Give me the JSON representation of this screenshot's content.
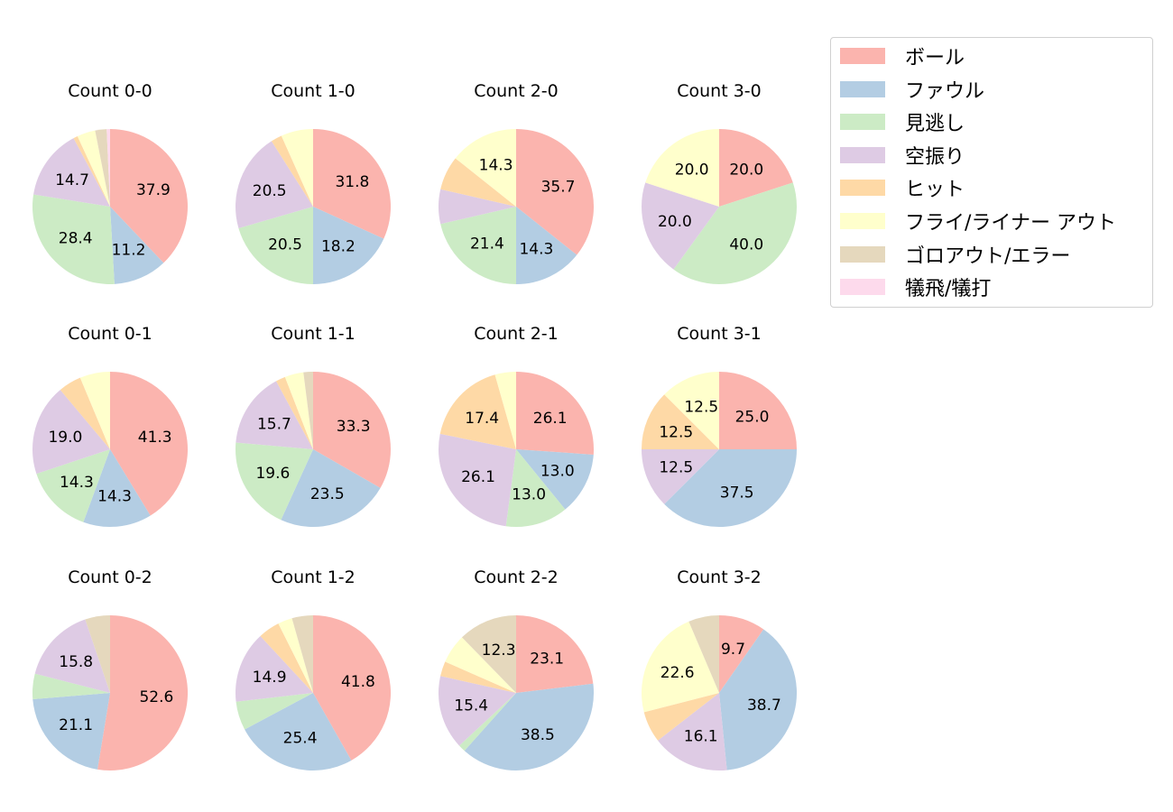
{
  "chart_data": {
    "type": "pie",
    "legend_position": "top-right",
    "categories": [
      "ボール",
      "ファウル",
      "見逃し",
      "空振り",
      "ヒット",
      "フライ/ライナー アウト",
      "ゴロアウト/エラー",
      "犠飛/犠打"
    ],
    "colors": [
      "#fbb4ae",
      "#b3cde3",
      "#ccebc5",
      "#decbe4",
      "#fed9a6",
      "#ffffcc",
      "#e5d8bd",
      "#fddaec"
    ],
    "charts": [
      {
        "title": "Count 0-0",
        "values": [
          37.9,
          11.2,
          28.4,
          14.7,
          0.9,
          3.8,
          2.4,
          0.7
        ],
        "labels": [
          "37.9",
          "11.2",
          "28.4",
          "14.7",
          "",
          "",
          "",
          ""
        ]
      },
      {
        "title": "Count 1-0",
        "values": [
          31.8,
          18.2,
          20.5,
          20.5,
          2.3,
          6.7,
          0,
          0
        ],
        "labels": [
          "31.8",
          "18.2",
          "20.5",
          "20.5",
          "",
          "",
          "",
          ""
        ]
      },
      {
        "title": "Count 2-0",
        "values": [
          35.7,
          14.3,
          21.4,
          7.2,
          7.1,
          14.3,
          0,
          0
        ],
        "labels": [
          "35.7",
          "14.3",
          "21.4",
          "",
          "",
          "14.3",
          "",
          ""
        ]
      },
      {
        "title": "Count 3-0",
        "values": [
          20.0,
          0,
          40.0,
          20.0,
          0,
          20.0,
          0,
          0
        ],
        "labels": [
          "20.0",
          "",
          "40.0",
          "20.0",
          "",
          "20.0",
          "",
          ""
        ]
      },
      {
        "title": "Count 0-1",
        "values": [
          41.3,
          14.3,
          14.3,
          19.0,
          4.8,
          6.3,
          0,
          0
        ],
        "labels": [
          "41.3",
          "14.3",
          "14.3",
          "19.0",
          "",
          "",
          "",
          ""
        ]
      },
      {
        "title": "Count 1-1",
        "values": [
          33.3,
          23.5,
          19.6,
          15.7,
          2.0,
          3.9,
          2.0,
          0
        ],
        "labels": [
          "33.3",
          "23.5",
          "19.6",
          "15.7",
          "",
          "",
          "",
          ""
        ]
      },
      {
        "title": "Count 2-1",
        "values": [
          26.1,
          13.0,
          13.0,
          26.1,
          17.4,
          4.4,
          0,
          0
        ],
        "labels": [
          "26.1",
          "13.0",
          "13.0",
          "26.1",
          "17.4",
          "",
          "",
          ""
        ]
      },
      {
        "title": "Count 3-1",
        "values": [
          25.0,
          37.5,
          0,
          12.5,
          12.5,
          12.5,
          0,
          0
        ],
        "labels": [
          "25.0",
          "37.5",
          "",
          "12.5",
          "12.5",
          "12.5",
          "",
          ""
        ]
      },
      {
        "title": "Count 0-2",
        "values": [
          52.6,
          21.1,
          5.3,
          15.8,
          0,
          0,
          5.2,
          0
        ],
        "labels": [
          "52.6",
          "21.1",
          "",
          "15.8",
          "",
          "",
          "",
          ""
        ]
      },
      {
        "title": "Count 1-2",
        "values": [
          41.8,
          25.4,
          6.0,
          14.9,
          4.5,
          3.0,
          4.4,
          0
        ],
        "labels": [
          "41.8",
          "25.4",
          "",
          "14.9",
          "",
          "",
          "",
          ""
        ]
      },
      {
        "title": "Count 2-2",
        "values": [
          23.1,
          38.5,
          1.5,
          15.4,
          3.1,
          6.1,
          12.3,
          0
        ],
        "labels": [
          "23.1",
          "38.5",
          "",
          "15.4",
          "",
          "",
          "12.3",
          ""
        ]
      },
      {
        "title": "Count 3-2",
        "values": [
          9.7,
          38.7,
          0,
          16.1,
          6.5,
          22.6,
          6.4,
          0
        ],
        "labels": [
          "9.7",
          "38.7",
          "",
          "16.1",
          "",
          "22.6",
          "",
          ""
        ]
      }
    ]
  }
}
